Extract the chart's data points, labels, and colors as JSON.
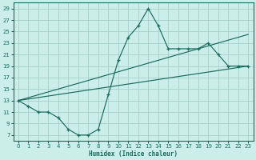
{
  "xlabel": "Humidex (Indice chaleur)",
  "background_color": "#cceee8",
  "grid_color": "#aad4cc",
  "line_color": "#1a6b5a",
  "xlim": [
    -0.5,
    23.5
  ],
  "ylim": [
    6,
    30
  ],
  "xticks": [
    0,
    1,
    2,
    3,
    4,
    5,
    6,
    7,
    8,
    9,
    10,
    11,
    12,
    13,
    14,
    15,
    16,
    17,
    18,
    19,
    20,
    21,
    22,
    23
  ],
  "yticks": [
    7,
    9,
    11,
    13,
    15,
    17,
    19,
    21,
    23,
    25,
    27,
    29
  ],
  "series1_x": [
    0,
    1,
    2,
    3,
    4,
    5,
    6,
    7,
    8,
    9,
    10,
    11,
    12,
    13,
    14,
    15,
    16,
    17,
    18,
    19,
    20,
    21,
    22,
    23
  ],
  "series1_y": [
    13,
    12,
    11,
    11,
    10,
    8,
    7,
    7,
    8,
    14,
    20,
    24,
    26,
    29,
    26,
    22,
    22,
    22,
    22,
    23,
    21,
    19,
    19,
    19
  ],
  "trend1_x": [
    0,
    23
  ],
  "trend1_y": [
    13,
    24.5
  ],
  "trend2_x": [
    0,
    23
  ],
  "trend2_y": [
    13,
    19.0
  ]
}
